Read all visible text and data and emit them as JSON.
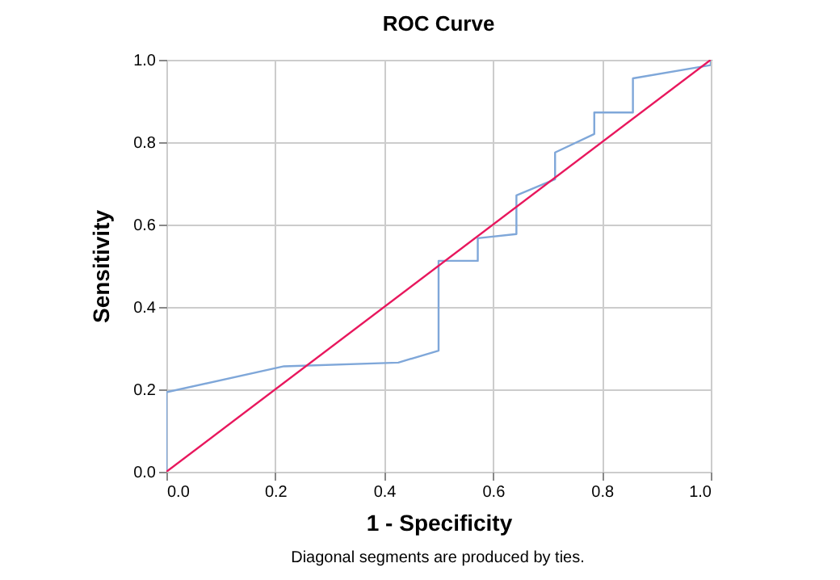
{
  "chart_data": {
    "type": "line",
    "title": "ROC Curve",
    "xlabel": "1 - Specificity",
    "ylabel": "Sensitivity",
    "annotations": [
      "Diagonal segments are produced by ties."
    ],
    "series": [
      {
        "color": "#7fa7d9",
        "x": [
          0,
          0,
          0.216,
          0.426,
          0.5,
          0.5,
          0.572,
          0.572,
          0.643,
          0.643,
          0.714,
          0.714,
          0.786,
          0.786,
          0.857,
          0.857,
          1.0,
          1.0
        ],
        "values": [
          0,
          0.193,
          0.256,
          0.265,
          0.294,
          0.512,
          0.512,
          0.567,
          0.577,
          0.671,
          0.71,
          0.775,
          0.82,
          0.872,
          0.872,
          0.955,
          0.987,
          1.0
        ]
      },
      {
        "color": "#e8175d",
        "x": [
          0,
          1
        ],
        "values": [
          0,
          1
        ]
      }
    ],
    "xlim": [
      0,
      1
    ],
    "ylim": [
      0,
      1
    ],
    "xticks": [
      {
        "value": 0,
        "label": "0.0"
      },
      {
        "value": 0.2,
        "label": "0.2"
      },
      {
        "value": 0.4,
        "label": "0.4"
      },
      {
        "value": 0.6,
        "label": "0.6"
      },
      {
        "value": 0.8,
        "label": "0.8"
      },
      {
        "value": 1,
        "label": "1.0"
      }
    ],
    "yticks": [
      {
        "value": 0,
        "label": "0.0"
      },
      {
        "value": 0.2,
        "label": "0.2"
      },
      {
        "value": 0.4,
        "label": "0.4"
      },
      {
        "value": 0.6,
        "label": "0.6"
      },
      {
        "value": 0.8,
        "label": "0.8"
      },
      {
        "value": 1,
        "label": "1.0"
      }
    ],
    "grid": true,
    "legend": false
  }
}
